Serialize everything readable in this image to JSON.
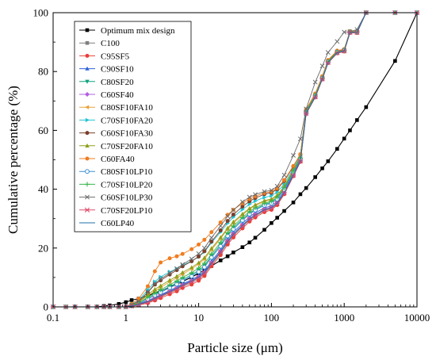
{
  "chart_data": {
    "type": "line",
    "title": "",
    "xlabel": "Particle size (μm)",
    "ylabel": "Cumulative percentage (%)",
    "xscale": "log",
    "xlim": [
      0.1,
      10000
    ],
    "ylim": [
      0,
      100
    ],
    "xticks": [
      "0.1",
      "1",
      "10",
      "100",
      "1000",
      "10000"
    ],
    "yticks": [
      "0",
      "20",
      "40",
      "60",
      "80",
      "100"
    ],
    "legend_position": "top-left",
    "grid": false,
    "x": [
      0.1,
      0.15,
      0.2,
      0.3,
      0.4,
      0.5,
      0.6,
      0.8,
      1,
      1.2,
      1.5,
      2,
      2.5,
      3,
      4,
      5,
      6,
      8,
      10,
      12,
      15,
      20,
      25,
      30,
      40,
      50,
      60,
      80,
      100,
      120,
      150,
      200,
      250,
      300,
      400,
      500,
      600,
      800,
      1000,
      1200,
      1500,
      2000,
      5000,
      10000
    ],
    "series": [
      {
        "name": "Optimum mix design",
        "color": "#000000",
        "marker": "square",
        "values": [
          0,
          0,
          0,
          0,
          0,
          0.3,
          0.5,
          1,
          1.6,
          2.3,
          2.8,
          3.8,
          4.7,
          5.4,
          6.7,
          7.7,
          8.6,
          10.1,
          11.4,
          12.5,
          13.9,
          15.8,
          17.2,
          18.5,
          20.3,
          21.9,
          23.5,
          26.2,
          28.5,
          30.3,
          32.6,
          35.5,
          38.3,
          40.4,
          44.1,
          47.1,
          49.5,
          53.7,
          57.2,
          60,
          63.5,
          67.9,
          83.6,
          100
        ]
      },
      {
        "name": "C100",
        "color": "#7f7f7f",
        "marker": "square",
        "values": [
          0,
          0,
          0,
          0,
          0,
          0,
          0,
          0,
          0,
          0.3,
          0.8,
          1.5,
          2.4,
          3.4,
          4.8,
          5.8,
          6.9,
          8.2,
          9.5,
          11.1,
          14.4,
          18.3,
          21.8,
          24.2,
          27.3,
          29.5,
          30.9,
          32.6,
          33.4,
          34.9,
          38.5,
          44.6,
          49.4,
          65.7,
          71.3,
          77.4,
          83,
          86.3,
          86.9,
          93.2,
          93.2,
          100,
          100,
          100
        ]
      },
      {
        "name": "C95SF5",
        "color": "#e8403a",
        "marker": "circle",
        "values": [
          0,
          0,
          0,
          0,
          0,
          0,
          0,
          0,
          0,
          0.2,
          0.6,
          1.3,
          2.2,
          3,
          4.3,
          5.3,
          6.4,
          7.6,
          8.9,
          10.5,
          13.8,
          17.6,
          21.2,
          23.6,
          26.7,
          29,
          30.4,
          32.2,
          33,
          34.6,
          38.3,
          44.4,
          49.3,
          65.6,
          71.2,
          77.3,
          82.9,
          86.2,
          86.8,
          93.1,
          93.1,
          100,
          100,
          100
        ]
      },
      {
        "name": "C90SF10",
        "color": "#2d62d9",
        "marker": "triangle-up",
        "values": [
          0,
          0,
          0,
          0,
          0,
          0,
          0,
          0,
          0,
          0.4,
          1,
          2.1,
          3.2,
          4.1,
          5.6,
          6.7,
          7.8,
          9.2,
          10.6,
          12.2,
          15.5,
          19.4,
          23,
          25.4,
          28.4,
          30.6,
          32,
          33.6,
          34.4,
          35.9,
          39.3,
          45.2,
          50,
          66,
          71.6,
          77.6,
          83.2,
          86.5,
          87.1,
          93.4,
          93.4,
          100,
          100,
          100
        ]
      },
      {
        "name": "C80SF20",
        "color": "#0fa47d",
        "marker": "triangle-down",
        "values": [
          0,
          0,
          0,
          0,
          0,
          0,
          0,
          0,
          0,
          0.5,
          1.4,
          3,
          4.3,
          5.3,
          6.9,
          8.1,
          9.3,
          10.9,
          12.4,
          14,
          17.3,
          21.2,
          24.6,
          26.9,
          29.8,
          31.8,
          33.2,
          34.8,
          35.6,
          37,
          40.2,
          45.9,
          50.5,
          66.3,
          71.8,
          77.8,
          83.4,
          86.6,
          87.2,
          93.5,
          93.5,
          100,
          100,
          100
        ]
      },
      {
        "name": "C60SF40",
        "color": "#b060e0",
        "marker": "diamond",
        "values": [
          0,
          0,
          0,
          0,
          0,
          0,
          0,
          0,
          0,
          0.3,
          0.9,
          1.9,
          3,
          3.9,
          5.3,
          6.4,
          7.5,
          8.9,
          10.2,
          11.8,
          15,
          18.9,
          22.4,
          24.8,
          27.8,
          30,
          31.4,
          33.1,
          33.9,
          35.4,
          38.9,
          44.9,
          49.7,
          65.8,
          71.4,
          77.5,
          83.1,
          86.4,
          87,
          93.3,
          93.3,
          100,
          100,
          100
        ]
      },
      {
        "name": "C80SF10FA10",
        "color": "#e8a23a",
        "marker": "triangle-left",
        "values": [
          0,
          0,
          0,
          0,
          0,
          0,
          0,
          0,
          0,
          0.6,
          1.6,
          3.8,
          5.4,
          6.6,
          8.5,
          9.8,
          11.1,
          12.9,
          14.5,
          16.2,
          19.4,
          23.2,
          26.4,
          28.5,
          31.2,
          33.2,
          34.4,
          35.8,
          36.4,
          37.7,
          40.8,
          46.3,
          50.7,
          66.4,
          71.9,
          77.9,
          83.5,
          86.7,
          87.3,
          93.5,
          93.5,
          100,
          100,
          100
        ]
      },
      {
        "name": "C70SF10FA20",
        "color": "#21c4d4",
        "marker": "triangle-right",
        "values": [
          0,
          0,
          0,
          0,
          0,
          0,
          0,
          0,
          0,
          0.8,
          2.2,
          5.8,
          8.6,
          10.2,
          11.9,
          13,
          14.1,
          15.6,
          17,
          18.7,
          21.8,
          25.4,
          28.4,
          30.5,
          33.1,
          34.9,
          36,
          37.2,
          37.8,
          39,
          41.8,
          47,
          51.3,
          66.7,
          72.2,
          78.1,
          83.6,
          86.8,
          87.4,
          93.6,
          93.6,
          100,
          100,
          100
        ]
      },
      {
        "name": "C60SF10FA30",
        "color": "#7b3f2b",
        "marker": "circle",
        "values": [
          0,
          0,
          0,
          0,
          0,
          0,
          0,
          0,
          0,
          0.7,
          1.9,
          4.9,
          7.6,
          9,
          11,
          12.5,
          13.8,
          15.5,
          17.1,
          18.9,
          22.2,
          26,
          29.2,
          31.4,
          34.1,
          35.9,
          37,
          38.3,
          38.8,
          40,
          42.8,
          47.7,
          51.8,
          67,
          72.4,
          78.3,
          83.8,
          87,
          87.5,
          93.7,
          93.7,
          100,
          100,
          100
        ]
      },
      {
        "name": "C70SF20FA10",
        "color": "#8fa01a",
        "marker": "triangle-up",
        "values": [
          0,
          0,
          0,
          0,
          0,
          0,
          0,
          0,
          0,
          0.6,
          1.7,
          4.2,
          6,
          7.2,
          9.1,
          10.4,
          11.7,
          13.4,
          15,
          16.7,
          19.9,
          23.6,
          26.8,
          28.9,
          31.6,
          33.5,
          34.7,
          36.1,
          36.7,
          38,
          41,
          46.5,
          50.9,
          66.5,
          72,
          78,
          83.5,
          86.7,
          87.3,
          93.5,
          93.5,
          100,
          100,
          100
        ]
      },
      {
        "name": "C60FA40",
        "color": "#f07c1e",
        "marker": "circle",
        "values": [
          0,
          0,
          0,
          0,
          0,
          0,
          0,
          0,
          0,
          1,
          2.8,
          7,
          12.1,
          15.1,
          16.5,
          17.2,
          18,
          19.6,
          21.2,
          22.8,
          25.4,
          28.7,
          31.3,
          33,
          35.2,
          36.7,
          37.6,
          38.7,
          39.2,
          40.3,
          43.1,
          47.9,
          51.9,
          67.1,
          72.5,
          78.4,
          83.9,
          87.1,
          87.6,
          93.7,
          93.7,
          100,
          100,
          100
        ]
      },
      {
        "name": "C80SF10LP10",
        "color": "#3a8fd0",
        "marker": "circle-open",
        "values": [
          0,
          0,
          0,
          0,
          0,
          0,
          0,
          0,
          0,
          0.4,
          1.1,
          2.6,
          3.9,
          4.9,
          6.5,
          7.7,
          8.9,
          10.4,
          11.9,
          13.5,
          16.8,
          20.6,
          24.1,
          26.4,
          29.4,
          31.5,
          32.9,
          34.5,
          35.2,
          36.6,
          39.9,
          45.6,
          50.3,
          66.2,
          71.7,
          77.7,
          83.3,
          86.6,
          87.2,
          93.4,
          93.4,
          100,
          100,
          100
        ]
      },
      {
        "name": "C70SF10LP20",
        "color": "#3ab54a",
        "marker": "plus",
        "values": [
          0,
          0,
          0,
          0,
          0,
          0,
          0,
          0,
          0,
          0.5,
          1.3,
          3.3,
          4.7,
          5.8,
          7.5,
          8.8,
          10,
          11.6,
          13.2,
          14.8,
          18,
          21.9,
          25.2,
          27.5,
          30.4,
          32.4,
          33.7,
          35.2,
          35.9,
          37.3,
          40.5,
          46.1,
          50.6,
          66.4,
          71.9,
          77.8,
          83.4,
          86.7,
          87.2,
          93.5,
          93.5,
          100,
          100,
          100
        ]
      },
      {
        "name": "C60SF10LP30",
        "color": "#6b6b6b",
        "marker": "x",
        "values": [
          0,
          0,
          0,
          0,
          0,
          0,
          0,
          0,
          0,
          0.7,
          1.9,
          5,
          7.9,
          9.5,
          11.5,
          13,
          14.4,
          16.3,
          18.1,
          20,
          23.5,
          27.5,
          30.8,
          32.9,
          35.7,
          37.3,
          38.2,
          39.2,
          39.6,
          41,
          44.8,
          51.5,
          57.1,
          67.3,
          76.4,
          81.9,
          86.5,
          90.2,
          93.4,
          93.5,
          94.3,
          100,
          100,
          100
        ]
      },
      {
        "name": "C70SF20LP10",
        "color": "#e04a6a",
        "marker": "star",
        "values": [
          0,
          0,
          0,
          0,
          0,
          0,
          0,
          0,
          0,
          0.3,
          0.8,
          1.7,
          2.7,
          3.6,
          5,
          6.1,
          7.2,
          8.6,
          9.9,
          11.5,
          14.8,
          18.7,
          22.2,
          24.6,
          27.6,
          29.8,
          31.2,
          32.9,
          33.7,
          35.2,
          38.8,
          44.8,
          49.6,
          65.8,
          71.4,
          77.5,
          83.1,
          86.4,
          87,
          93.3,
          93.3,
          100,
          100,
          100
        ]
      },
      {
        "name": "C60LP40",
        "color": "#1f6fae",
        "marker": "none",
        "values": [
          0,
          0,
          0,
          0,
          0,
          0,
          0,
          0,
          0,
          0.3,
          0.9,
          1.8,
          2.9,
          3.8,
          5.2,
          6.3,
          7.4,
          8.8,
          10.1,
          11.7,
          14.9,
          18.8,
          22.3,
          24.7,
          27.7,
          29.9,
          31.3,
          33,
          33.8,
          35.3,
          38.8,
          44.8,
          49.6,
          65.8,
          71.4,
          77.5,
          83.1,
          86.4,
          87,
          93.3,
          93.3,
          100,
          100,
          100
        ]
      }
    ]
  }
}
